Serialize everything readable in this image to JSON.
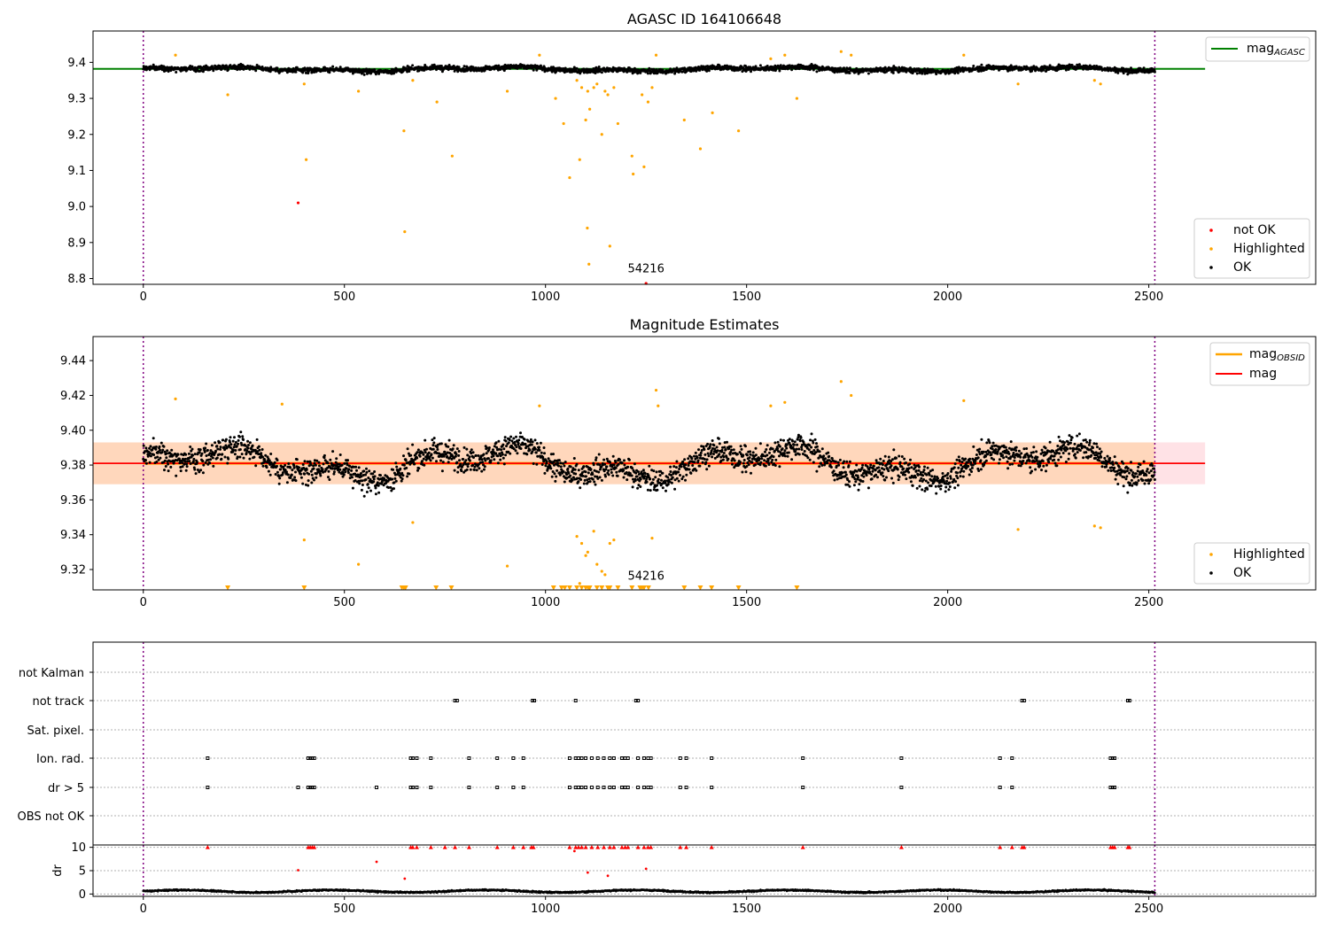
{
  "colors": {
    "ok": "#000000",
    "highlighted": "#ffa500",
    "not_ok": "#ff0000",
    "mag_agasc": "#008000",
    "mag": "#ff0000",
    "mag_obsid": "#ffa500",
    "band": "#ffb6c1",
    "vline": "#800080",
    "grid": "#b0b0b0"
  },
  "chart_data": [
    {
      "type": "scatter",
      "title": "AGASC ID 164106648",
      "xlim": [
        -125,
        2915
      ],
      "ylim": [
        8.784,
        9.487
      ],
      "xticks": [
        0,
        500,
        1000,
        1500,
        2000,
        2500
      ],
      "yticks": [
        8.8,
        8.9,
        9.0,
        9.1,
        9.2,
        9.3,
        9.4
      ],
      "vlines": [
        0,
        2515
      ],
      "hlines": [
        {
          "name": "mag_AGASC",
          "y": 9.382,
          "x": [
            -125,
            2640
          ]
        }
      ],
      "annotation": {
        "text": "54216",
        "x": 1250,
        "y": 8.81
      },
      "legend": {
        "lines": [
          "mag_AGASC"
        ],
        "markers": [
          "not OK",
          "Highlighted",
          "OK"
        ],
        "line_loc": "upper right",
        "marker_loc": "lower right"
      },
      "series": [
        {
          "name": "not OK",
          "points": [
            [
              385,
              9.01
            ],
            [
              1250,
              8.78
            ]
          ]
        },
        {
          "name": "Highlighted",
          "points": [
            [
              80,
              9.42
            ],
            [
              210,
              9.31
            ],
            [
              400,
              9.34
            ],
            [
              405,
              9.13
            ],
            [
              535,
              9.32
            ],
            [
              648,
              9.21
            ],
            [
              650,
              8.93
            ],
            [
              670,
              9.35
            ],
            [
              730,
              9.29
            ],
            [
              768,
              9.14
            ],
            [
              905,
              9.32
            ],
            [
              985,
              9.42
            ],
            [
              1025,
              9.3
            ],
            [
              1045,
              9.23
            ],
            [
              1060,
              9.08
            ],
            [
              1078,
              9.35
            ],
            [
              1085,
              9.13
            ],
            [
              1090,
              9.33
            ],
            [
              1100,
              9.24
            ],
            [
              1104,
              8.94
            ],
            [
              1105,
              9.32
            ],
            [
              1108,
              8.84
            ],
            [
              1110,
              9.27
            ],
            [
              1120,
              9.33
            ],
            [
              1128,
              9.34
            ],
            [
              1140,
              9.2
            ],
            [
              1148,
              9.32
            ],
            [
              1155,
              9.31
            ],
            [
              1160,
              8.89
            ],
            [
              1170,
              9.33
            ],
            [
              1180,
              9.23
            ],
            [
              1215,
              9.14
            ],
            [
              1218,
              9.09
            ],
            [
              1240,
              9.31
            ],
            [
              1245,
              9.11
            ],
            [
              1255,
              9.29
            ],
            [
              1265,
              9.33
            ],
            [
              1275,
              9.42
            ],
            [
              1345,
              9.24
            ],
            [
              1385,
              9.16
            ],
            [
              1415,
              9.26
            ],
            [
              1480,
              9.21
            ],
            [
              1560,
              9.41
            ],
            [
              1595,
              9.42
            ],
            [
              1625,
              9.3
            ],
            [
              1735,
              9.43
            ],
            [
              1760,
              9.42
            ],
            [
              2040,
              9.42
            ],
            [
              2175,
              9.34
            ],
            [
              2365,
              9.35
            ],
            [
              2380,
              9.34
            ]
          ]
        },
        {
          "name": "OK",
          "n": 2500,
          "x_range": [
            0,
            2515
          ],
          "mean": 9.381,
          "noise": 0.009
        }
      ]
    },
    {
      "type": "scatter",
      "title": "Magnitude Estimates",
      "xlim": [
        -125,
        2915
      ],
      "ylim": [
        9.3083,
        9.4538
      ],
      "xticks": [
        0,
        500,
        1000,
        1500,
        2000,
        2500
      ],
      "yticks": [
        9.32,
        9.34,
        9.36,
        9.38,
        9.4,
        9.42,
        9.44
      ],
      "vlines": [
        0,
        2515
      ],
      "hlines": [
        {
          "name": "mag",
          "y": 9.381,
          "x": [
            -125,
            2640
          ]
        }
      ],
      "band": {
        "y": [
          9.369,
          9.393
        ],
        "x": [
          -125,
          2640
        ]
      },
      "obsid_band": {
        "y": [
          9.369,
          9.393
        ],
        "x": [
          -125,
          2515
        ]
      },
      "annotation": {
        "text": "54216",
        "x": 1250,
        "y": 9.3126
      },
      "legend": {
        "lines": [
          "mag_OBSID",
          "mag"
        ],
        "markers": [
          "Highlighted",
          "OK"
        ],
        "line_loc": "upper right",
        "marker_loc": "lower right"
      },
      "series": [
        {
          "name": "Highlighted",
          "points": [
            [
              80,
              9.418
            ],
            [
              345,
              9.415
            ],
            [
              400,
              9.337
            ],
            [
              535,
              9.323
            ],
            [
              670,
              9.347
            ],
            [
              905,
              9.322
            ],
            [
              985,
              9.414
            ],
            [
              1078,
              9.339
            ],
            [
              1085,
              9.312
            ],
            [
              1090,
              9.335
            ],
            [
              1100,
              9.328
            ],
            [
              1105,
              9.33
            ],
            [
              1120,
              9.342
            ],
            [
              1128,
              9.323
            ],
            [
              1140,
              9.319
            ],
            [
              1148,
              9.317
            ],
            [
              1160,
              9.335
            ],
            [
              1170,
              9.337
            ],
            [
              1265,
              9.338
            ],
            [
              1275,
              9.423
            ],
            [
              1280,
              9.414
            ],
            [
              1560,
              9.414
            ],
            [
              1595,
              9.416
            ],
            [
              1735,
              9.428
            ],
            [
              1760,
              9.42
            ],
            [
              2040,
              9.417
            ],
            [
              2175,
              9.343
            ],
            [
              2365,
              9.345
            ],
            [
              2380,
              9.344
            ]
          ]
        },
        {
          "name": "Highlighted-offscale",
          "x": [
            210,
            400,
            643,
            648,
            652,
            728,
            766,
            1020,
            1040,
            1048,
            1060,
            1078,
            1090,
            1100,
            1106,
            1110,
            1128,
            1140,
            1155,
            1160,
            1180,
            1215,
            1235,
            1240,
            1245,
            1256,
            1345,
            1385,
            1413,
            1480,
            1625
          ],
          "y": 9.3093
        },
        {
          "name": "OK",
          "n": 2500,
          "x_range": [
            0,
            2515
          ],
          "mean": 9.381,
          "noise": 0.009
        }
      ]
    },
    {
      "type": "scatter",
      "title": "",
      "xlim": [
        -125,
        2915
      ],
      "categories": [
        "not Kalman",
        "not track",
        "Sat. pixel.",
        "Ion. rad.",
        "dr > 5",
        "OBS not OK"
      ],
      "flags": {
        "not Kalman": [],
        "not track": [
          775,
          780,
          968,
          972,
          1075,
          1225,
          1230,
          2185,
          2190,
          2448,
          2452
        ],
        "Sat. pixel.": [],
        "Ion. rad.": [
          160,
          410,
          415,
          420,
          425,
          665,
          670,
          680,
          715,
          810,
          880,
          920,
          945,
          1060,
          1075,
          1082,
          1090,
          1100,
          1115,
          1130,
          1145,
          1160,
          1170,
          1190,
          1198,
          1205,
          1230,
          1245,
          1255,
          1262,
          1335,
          1350,
          1413,
          1640,
          1885,
          2130,
          2160,
          2405,
          2410,
          2415
        ],
        "dr > 5": [
          160,
          385,
          410,
          415,
          420,
          425,
          580,
          665,
          670,
          680,
          715,
          810,
          880,
          920,
          945,
          1060,
          1075,
          1082,
          1090,
          1100,
          1115,
          1130,
          1145,
          1160,
          1170,
          1190,
          1198,
          1205,
          1230,
          1245,
          1255,
          1262,
          1335,
          1350,
          1413,
          1640,
          1885,
          2130,
          2160,
          2405,
          2410,
          2415
        ],
        "OBS not OK": []
      }
    },
    {
      "type": "scatter",
      "title": "",
      "xlim": [
        -125,
        2915
      ],
      "ylim": [
        -0.5,
        10.5
      ],
      "ylabel": "dr",
      "xticks": [
        0,
        500,
        1000,
        1500,
        2000,
        2500
      ],
      "yticks": [
        0,
        5,
        10
      ],
      "series": [
        {
          "name": "dr-outliers",
          "points": [
            [
              160,
              10
            ],
            [
              385,
              5.1
            ],
            [
              410,
              10
            ],
            [
              415,
              10
            ],
            [
              420,
              10
            ],
            [
              425,
              10
            ],
            [
              580,
              6.9
            ],
            [
              650,
              3.3
            ],
            [
              665,
              10
            ],
            [
              670,
              10
            ],
            [
              680,
              10
            ],
            [
              715,
              10
            ],
            [
              750,
              10
            ],
            [
              775,
              10
            ],
            [
              810,
              10
            ],
            [
              880,
              10
            ],
            [
              920,
              10
            ],
            [
              945,
              10
            ],
            [
              965,
              10
            ],
            [
              970,
              10
            ],
            [
              1060,
              10
            ],
            [
              1072,
              9.2
            ],
            [
              1075,
              10
            ],
            [
              1082,
              10
            ],
            [
              1090,
              10
            ],
            [
              1100,
              10
            ],
            [
              1105,
              4.6
            ],
            [
              1115,
              10
            ],
            [
              1130,
              10
            ],
            [
              1145,
              10
            ],
            [
              1155,
              3.9
            ],
            [
              1160,
              10
            ],
            [
              1170,
              10
            ],
            [
              1190,
              10
            ],
            [
              1198,
              10
            ],
            [
              1205,
              10
            ],
            [
              1230,
              10
            ],
            [
              1245,
              10
            ],
            [
              1250,
              5.4
            ],
            [
              1255,
              10
            ],
            [
              1262,
              10
            ],
            [
              1335,
              10
            ],
            [
              1350,
              10
            ],
            [
              1413,
              10
            ],
            [
              1640,
              10
            ],
            [
              1885,
              10
            ],
            [
              2130,
              10
            ],
            [
              2160,
              10
            ],
            [
              2185,
              10
            ],
            [
              2190,
              10
            ],
            [
              2405,
              10
            ],
            [
              2410,
              10
            ],
            [
              2415,
              10
            ],
            [
              2448,
              10
            ],
            [
              2452,
              10
            ]
          ]
        },
        {
          "name": "dr",
          "n": 2500,
          "x_range": [
            0,
            2515
          ],
          "mean": 0.6,
          "noise": 0.25
        }
      ]
    }
  ],
  "legend_text": {
    "not_ok": "not OK",
    "highlighted": "Highlighted",
    "ok": "OK",
    "mag_agasc_base": "mag",
    "mag_agasc_sub": "AGASC",
    "mag_obsid_base": "mag",
    "mag_obsid_sub": "OBSID",
    "mag": "mag"
  }
}
